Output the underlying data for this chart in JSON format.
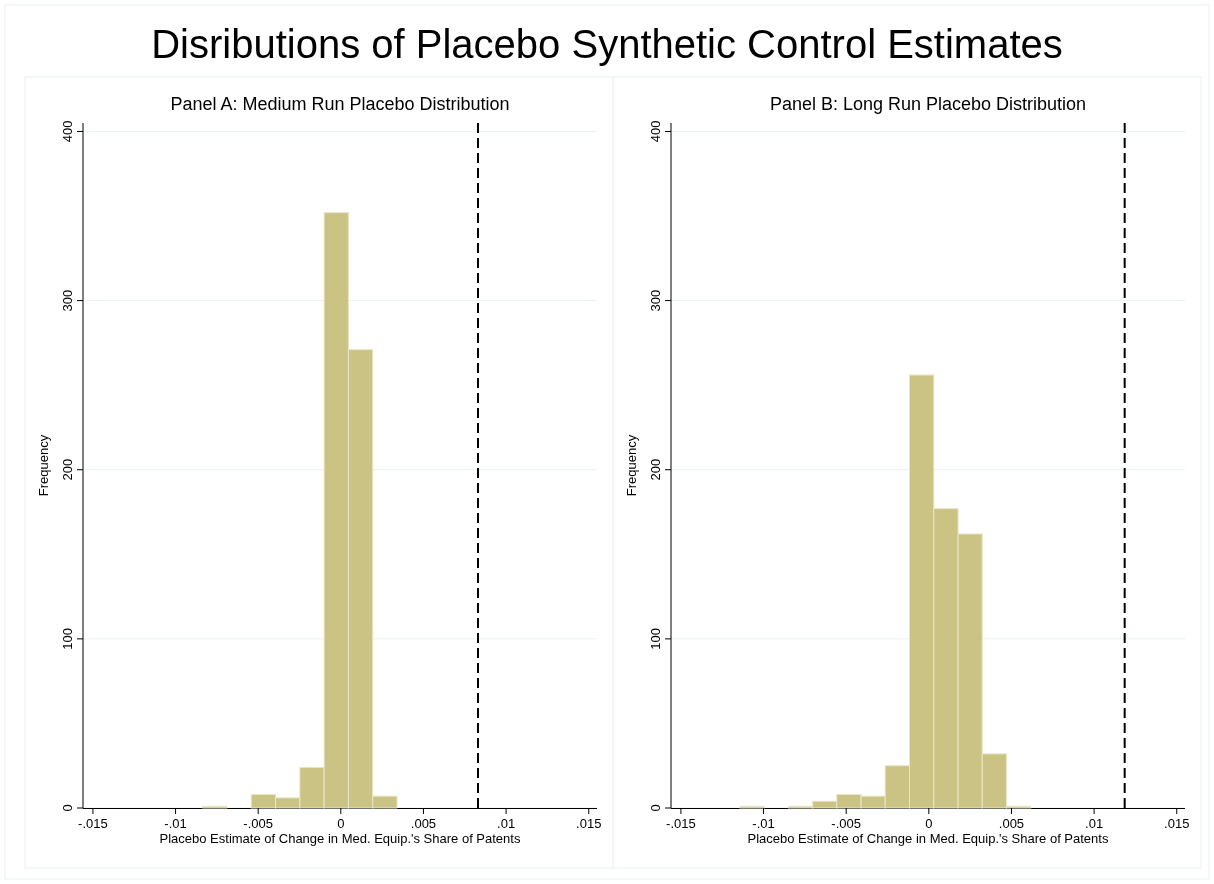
{
  "chart_data": [
    {
      "type": "histogram",
      "title": "Panel A: Medium Run Placebo Distribution",
      "annotations": [
        "Disributions of Placebo Synthetic Control Estimates"
      ],
      "xlabel": "Placebo Estimate of Change in Med. Equip.'s Share of Patents",
      "ylabel": "Frequency",
      "bins": [
        -0.00836,
        -0.00689,
        -0.00542,
        -0.00395,
        -0.00248,
        -0.00101,
        0.00046,
        0.00193,
        0.0034
      ],
      "values": [
        1,
        0,
        8,
        6,
        24,
        352,
        271,
        7
      ],
      "color": "#cbc383",
      "xlim": [
        -0.0156,
        0.0155
      ],
      "ylim": [
        0,
        405
      ],
      "xticks": [
        {
          "value": -0.015,
          "label": "-.015"
        },
        {
          "value": -0.01,
          "label": "-.01"
        },
        {
          "value": -0.005,
          "label": "-.005"
        },
        0,
        {
          "value": 0.005,
          "label": ".005"
        },
        {
          "value": 0.01,
          "label": ".01"
        },
        {
          "value": 0.015,
          "label": ".015"
        }
      ],
      "yticks": [
        0,
        100,
        200,
        300,
        400
      ],
      "grid": "y",
      "ref_lines": [
        {
          "axis": "x",
          "value": 0.0083,
          "line_style": "dashed",
          "color": "#000000"
        }
      ]
    },
    {
      "type": "histogram",
      "title": "Panel B: Long Run Placebo Distribution",
      "xlabel": "Placebo Estimate of Change in Med. Equip.'s Share of Patents",
      "ylabel": "Frequency",
      "bins": [
        -0.01143,
        -0.00996,
        -0.0085,
        -0.00703,
        -0.00557,
        -0.0041,
        -0.00264,
        -0.00117,
        0.0003,
        0.00177,
        0.00323,
        0.0047,
        0.00617
      ],
      "values": [
        1,
        0,
        1,
        4,
        8,
        7,
        25,
        256,
        177,
        162,
        32,
        1
      ],
      "color": "#cbc383",
      "xlim": [
        -0.0156,
        0.0155
      ],
      "ylim": [
        0,
        405
      ],
      "xticks": [
        {
          "value": -0.015,
          "label": "-.015"
        },
        {
          "value": -0.01,
          "label": "-.01"
        },
        {
          "value": -0.005,
          "label": "-.005"
        },
        0,
        {
          "value": 0.005,
          "label": ".005"
        },
        {
          "value": 0.01,
          "label": ".01"
        },
        {
          "value": 0.015,
          "label": ".015"
        }
      ],
      "yticks": [
        0,
        100,
        200,
        300,
        400
      ],
      "grid": "y",
      "ref_lines": [
        {
          "axis": "x",
          "value": 0.01185,
          "line_style": "dashed",
          "color": "#000000"
        }
      ]
    }
  ]
}
